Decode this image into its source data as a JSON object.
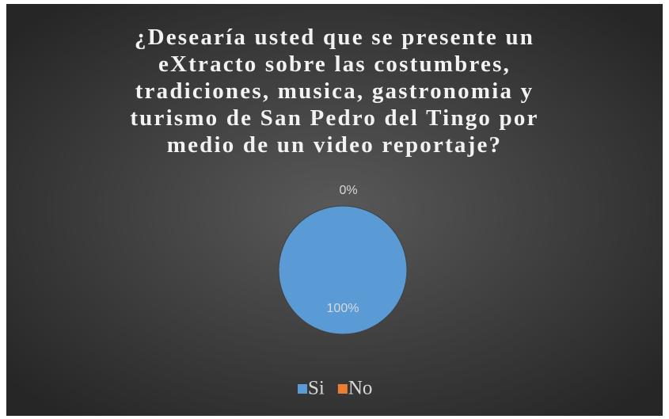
{
  "chart_data": {
    "type": "pie",
    "title": "¿Desearía usted que se presente un\neXtracto sobre las costumbres,\ntradiciones, musica, gastronomia y\nturismo de San Pedro del Tingo por\nmedio de un video reportaje?",
    "categories": [
      "Si",
      "No"
    ],
    "values": [
      100,
      0
    ],
    "value_labels": [
      "100%",
      "0%"
    ],
    "colors": [
      "#5b9bd5",
      "#ed7d31"
    ],
    "legend": "bottom"
  }
}
